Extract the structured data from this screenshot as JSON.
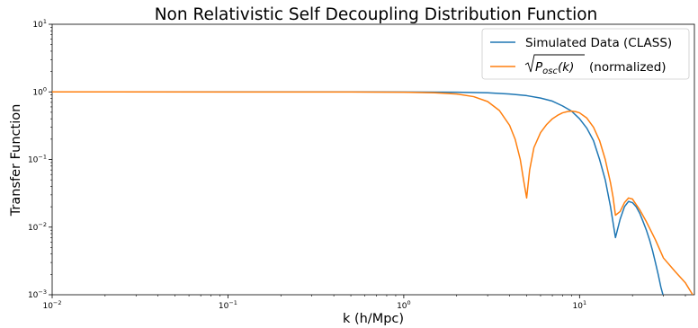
{
  "chart_data": {
    "type": "line",
    "title": "Non Relativistic Self Decoupling Distribution Function",
    "xlabel": "k (h/Mpc)",
    "ylabel": "Transfer Function",
    "xscale": "log",
    "yscale": "log",
    "xlim": [
      0.01,
      45
    ],
    "ylim": [
      0.001,
      10
    ],
    "grid": false,
    "legend_position": "top-right",
    "x_ticks": [
      {
        "base": "10",
        "exp": "−2"
      },
      {
        "base": "10",
        "exp": "−1"
      },
      {
        "base": "10",
        "exp": "0"
      },
      {
        "base": "10",
        "exp": "1"
      }
    ],
    "y_ticks": [
      {
        "base": "10",
        "exp": "−3"
      },
      {
        "base": "10",
        "exp": "−2"
      },
      {
        "base": "10",
        "exp": "−1"
      },
      {
        "base": "10",
        "exp": "0"
      },
      {
        "base": "10",
        "exp": "1"
      }
    ],
    "series": [
      {
        "name": "Simulated Data (CLASS)",
        "color": "#1f77b4",
        "x": [
          0.01,
          0.1,
          0.5,
          1.0,
          2.0,
          3.0,
          4.0,
          5.0,
          6.0,
          7.0,
          8.0,
          9.0,
          10.0,
          11.0,
          12.0,
          13.0,
          14.0,
          15.0,
          16.0,
          17.0,
          18.0,
          19.0,
          20.0,
          21.0,
          22.0,
          23.0,
          24.0,
          25.0,
          26.0,
          27.0,
          28.0,
          29.0,
          29.8
        ],
        "y": [
          1.0,
          1.0,
          1.0,
          0.998,
          0.99,
          0.97,
          0.93,
          0.88,
          0.81,
          0.73,
          0.62,
          0.52,
          0.4,
          0.29,
          0.19,
          0.1,
          0.05,
          0.02,
          0.007,
          0.013,
          0.02,
          0.024,
          0.023,
          0.02,
          0.016,
          0.012,
          0.009,
          0.0065,
          0.0045,
          0.003,
          0.002,
          0.0013,
          0.001
        ]
      },
      {
        "name": "(normalized)",
        "legend_math": {
          "base": "P",
          "sub": "osc",
          "arg": "(k)"
        },
        "color": "#ff7f0e",
        "x": [
          0.01,
          0.1,
          0.5,
          1.0,
          1.5,
          2.0,
          2.5,
          3.0,
          3.5,
          4.0,
          4.3,
          4.6,
          4.8,
          5.0,
          5.2,
          5.5,
          6.0,
          6.5,
          7.0,
          7.5,
          8.0,
          8.5,
          9.0,
          9.5,
          10.0,
          11.0,
          12.0,
          13.0,
          14.0,
          15.0,
          15.5,
          16.0,
          17.0,
          18.0,
          19.0,
          20.0,
          22.0,
          24.0,
          27.0,
          30.0,
          35.0,
          40.0,
          44.0
        ],
        "y": [
          1.0,
          0.998,
          0.995,
          0.99,
          0.97,
          0.93,
          0.85,
          0.72,
          0.53,
          0.32,
          0.2,
          0.1,
          0.05,
          0.027,
          0.07,
          0.15,
          0.25,
          0.33,
          0.4,
          0.45,
          0.49,
          0.51,
          0.52,
          0.51,
          0.49,
          0.41,
          0.3,
          0.19,
          0.1,
          0.045,
          0.028,
          0.015,
          0.017,
          0.023,
          0.027,
          0.026,
          0.018,
          0.012,
          0.0065,
          0.0035,
          0.0022,
          0.0015,
          0.001
        ]
      }
    ]
  }
}
